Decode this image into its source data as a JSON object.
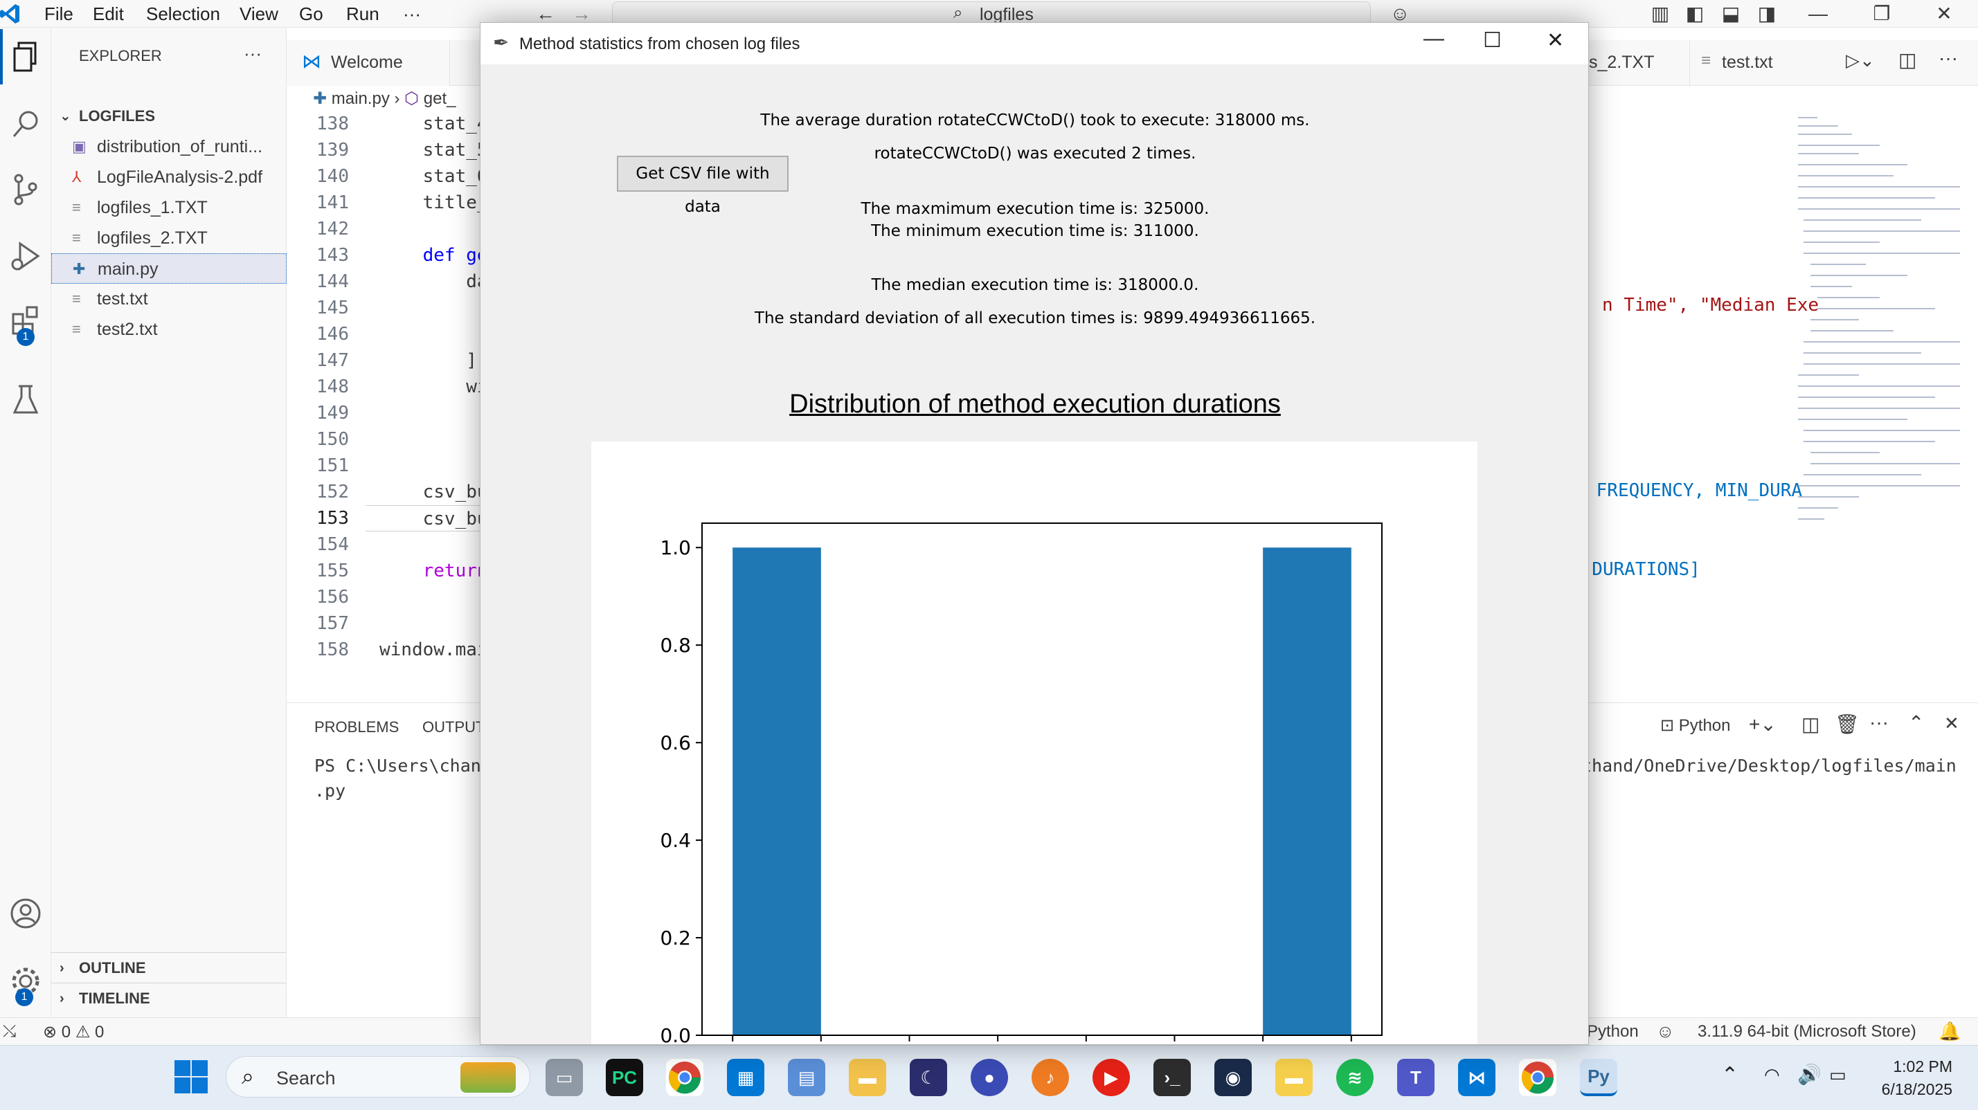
{
  "menu": [
    "File",
    "Edit",
    "Selection",
    "View",
    "Go",
    "Run",
    "···"
  ],
  "search_box": "logfiles",
  "explorer": {
    "header": "EXPLORER",
    "more": "···",
    "folder": "LOGFILES",
    "files": [
      {
        "name": "distribution_of_runti...",
        "icon": "image-icon"
      },
      {
        "name": "LogFileAnalysis-2.pdf",
        "icon": "pdf-icon"
      },
      {
        "name": "logfiles_1.TXT",
        "icon": "text-file-icon"
      },
      {
        "name": "logfiles_2.TXT",
        "icon": "text-file-icon"
      },
      {
        "name": "main.py",
        "icon": "python-file-icon"
      },
      {
        "name": "test.txt",
        "icon": "text-file-icon"
      },
      {
        "name": "test2.txt",
        "icon": "text-file-icon"
      }
    ],
    "outline": "OUTLINE",
    "timeline": "TIMELINE"
  },
  "editor": {
    "tabs": {
      "welcome": "Welcome",
      "logfiles2": "s_2.TXT",
      "test": "test.txt"
    },
    "breadcrumb": {
      "file": "main.py",
      "symbol": "get_"
    },
    "lines": [
      {
        "n": "138",
        "code": "    stat_4"
      },
      {
        "n": "139",
        "code": "    stat_5"
      },
      {
        "n": "140",
        "code": "    stat_6"
      },
      {
        "n": "141",
        "code": "    title_"
      },
      {
        "n": "142",
        "code": ""
      },
      {
        "n": "143",
        "code": "    def ge"
      },
      {
        "n": "144",
        "code": "        da"
      },
      {
        "n": "145",
        "code": ""
      },
      {
        "n": "146",
        "code": ""
      },
      {
        "n": "147",
        "code": "        ]"
      },
      {
        "n": "148",
        "code": "        wi"
      },
      {
        "n": "149",
        "code": ""
      },
      {
        "n": "150",
        "code": ""
      },
      {
        "n": "151",
        "code": ""
      },
      {
        "n": "152",
        "code": "    csv_bu"
      },
      {
        "n": "153",
        "code": "    csv_bu"
      },
      {
        "n": "154",
        "code": ""
      },
      {
        "n": "155",
        "code": "    return"
      },
      {
        "n": "156",
        "code": ""
      },
      {
        "n": "157",
        "code": ""
      },
      {
        "n": "158",
        "code": "window.mai"
      }
    ],
    "right_fragments": {
      "line145": "n Time\", \"Median Exe",
      "line152": " FREQUENCY, MIN_DURA",
      "line155": ", DURATIONS]"
    }
  },
  "panel": {
    "tabs": [
      "PROBLEMS",
      "OUTPUT"
    ],
    "terminal_left": "PS C:\\Users\\chan",
    "terminal_right": "thand/OneDrive/Desktop/logfiles/main",
    "terminal_line2": ".py",
    "shell": "Python"
  },
  "statusbar": {
    "errors": "0",
    "warnings": "0",
    "language": "Python",
    "interpreter": "3.11.9 64-bit (Microsoft Store)"
  },
  "dialog": {
    "title": "Method statistics from chosen log files",
    "avg": "The average duration rotateCCWCtoD() took to execute: 318000 ms.",
    "count": "rotateCCWCtoD() was executed 2 times.",
    "csv_button": "Get CSV file with data",
    "max": "The maxmimum execution time is: 325000.",
    "min": "The minimum execution time is: 311000.",
    "median": "The median execution time is: 318000.0.",
    "stddev": "The standard deviation of all execution times is: 9899.494936611665.",
    "chart_title": "Distribution of method execution durations"
  },
  "chart_data": {
    "type": "bar",
    "title": "Distribution of method execution durations",
    "xlabel": "",
    "ylabel": "",
    "ylim": [
      0,
      1.05
    ],
    "yticks": [
      "0.0",
      "0.2",
      "0.4",
      "0.6",
      "0.8",
      "1.0"
    ],
    "bins": 7,
    "values": [
      1,
      0,
      0,
      0,
      0,
      0,
      1
    ],
    "bar_color": "#1f77b4"
  },
  "taskbar": {
    "search": "Search",
    "time": "1:02 PM",
    "date": "6/18/2025"
  },
  "colors": {
    "accent": "#005fb8",
    "bar": "#1f77b4"
  }
}
